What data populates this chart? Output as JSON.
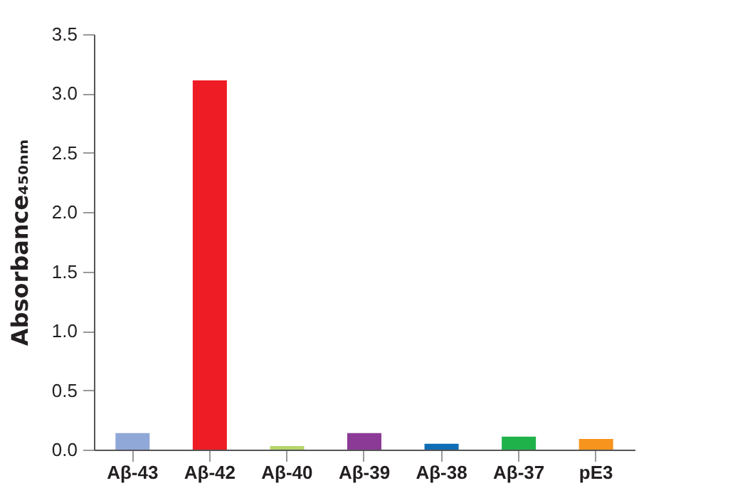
{
  "chart_data": {
    "type": "bar",
    "ylabel": "Absorbance₄₅₀ₙₘ",
    "categories": [
      "Aβ-43",
      "Aβ-42",
      "Aβ-40",
      "Aβ-39",
      "Aβ-38",
      "Aβ-37",
      "pE3"
    ],
    "values": [
      0.14,
      3.11,
      0.03,
      0.14,
      0.05,
      0.11,
      0.09
    ],
    "colors": [
      "#8fa8d8",
      "#ee1c25",
      "#b5d56a",
      "#8b3a96",
      "#0f6db5",
      "#1fb24a",
      "#f7941d"
    ],
    "ylim": [
      0,
      3.5
    ],
    "yticks": [
      {
        "value": 0,
        "label": "0.0"
      },
      {
        "value": 0.5,
        "label": "0.5"
      },
      {
        "value": 1,
        "label": "1.0"
      },
      {
        "value": 1.5,
        "label": "1.5"
      },
      {
        "value": 2,
        "label": "2.0"
      },
      {
        "value": 2.5,
        "label": "2.5"
      },
      {
        "value": 3,
        "label": "3.0"
      },
      {
        "value": 3.5,
        "label": "3.5"
      }
    ],
    "grid": false
  }
}
